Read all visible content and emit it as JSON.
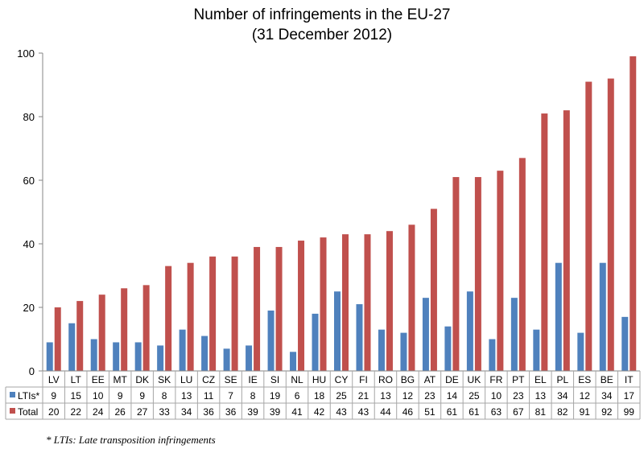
{
  "chart_data": {
    "type": "bar",
    "title": "Number of infringements in the EU-27",
    "subtitle": "(31 December 2012)",
    "xlabel": "",
    "ylabel": "",
    "ylim": [
      0,
      100
    ],
    "yticks": [
      0,
      20,
      40,
      60,
      80,
      100
    ],
    "grid": false,
    "legend_placement": "data-table-left",
    "categories": [
      "LV",
      "LT",
      "EE",
      "MT",
      "DK",
      "SK",
      "LU",
      "CZ",
      "SE",
      "IE",
      "SI",
      "NL",
      "HU",
      "CY",
      "FI",
      "RO",
      "BG",
      "AT",
      "DE",
      "UK",
      "FR",
      "PT",
      "EL",
      "PL",
      "ES",
      "BE",
      "IT"
    ],
    "series": [
      {
        "name": "LTIs*",
        "color": "#4F81BD",
        "values": [
          9,
          15,
          10,
          9,
          9,
          8,
          13,
          11,
          7,
          8,
          19,
          6,
          18,
          25,
          21,
          13,
          12,
          23,
          14,
          25,
          10,
          23,
          13,
          34,
          12,
          34,
          17
        ]
      },
      {
        "name": "Total",
        "color": "#C0504D",
        "values": [
          20,
          22,
          24,
          26,
          27,
          33,
          34,
          36,
          36,
          39,
          39,
          41,
          42,
          43,
          43,
          44,
          46,
          51,
          61,
          61,
          63,
          67,
          81,
          82,
          91,
          92,
          99
        ]
      }
    ],
    "footnote": "* LTIs: Late transposition infringements"
  }
}
